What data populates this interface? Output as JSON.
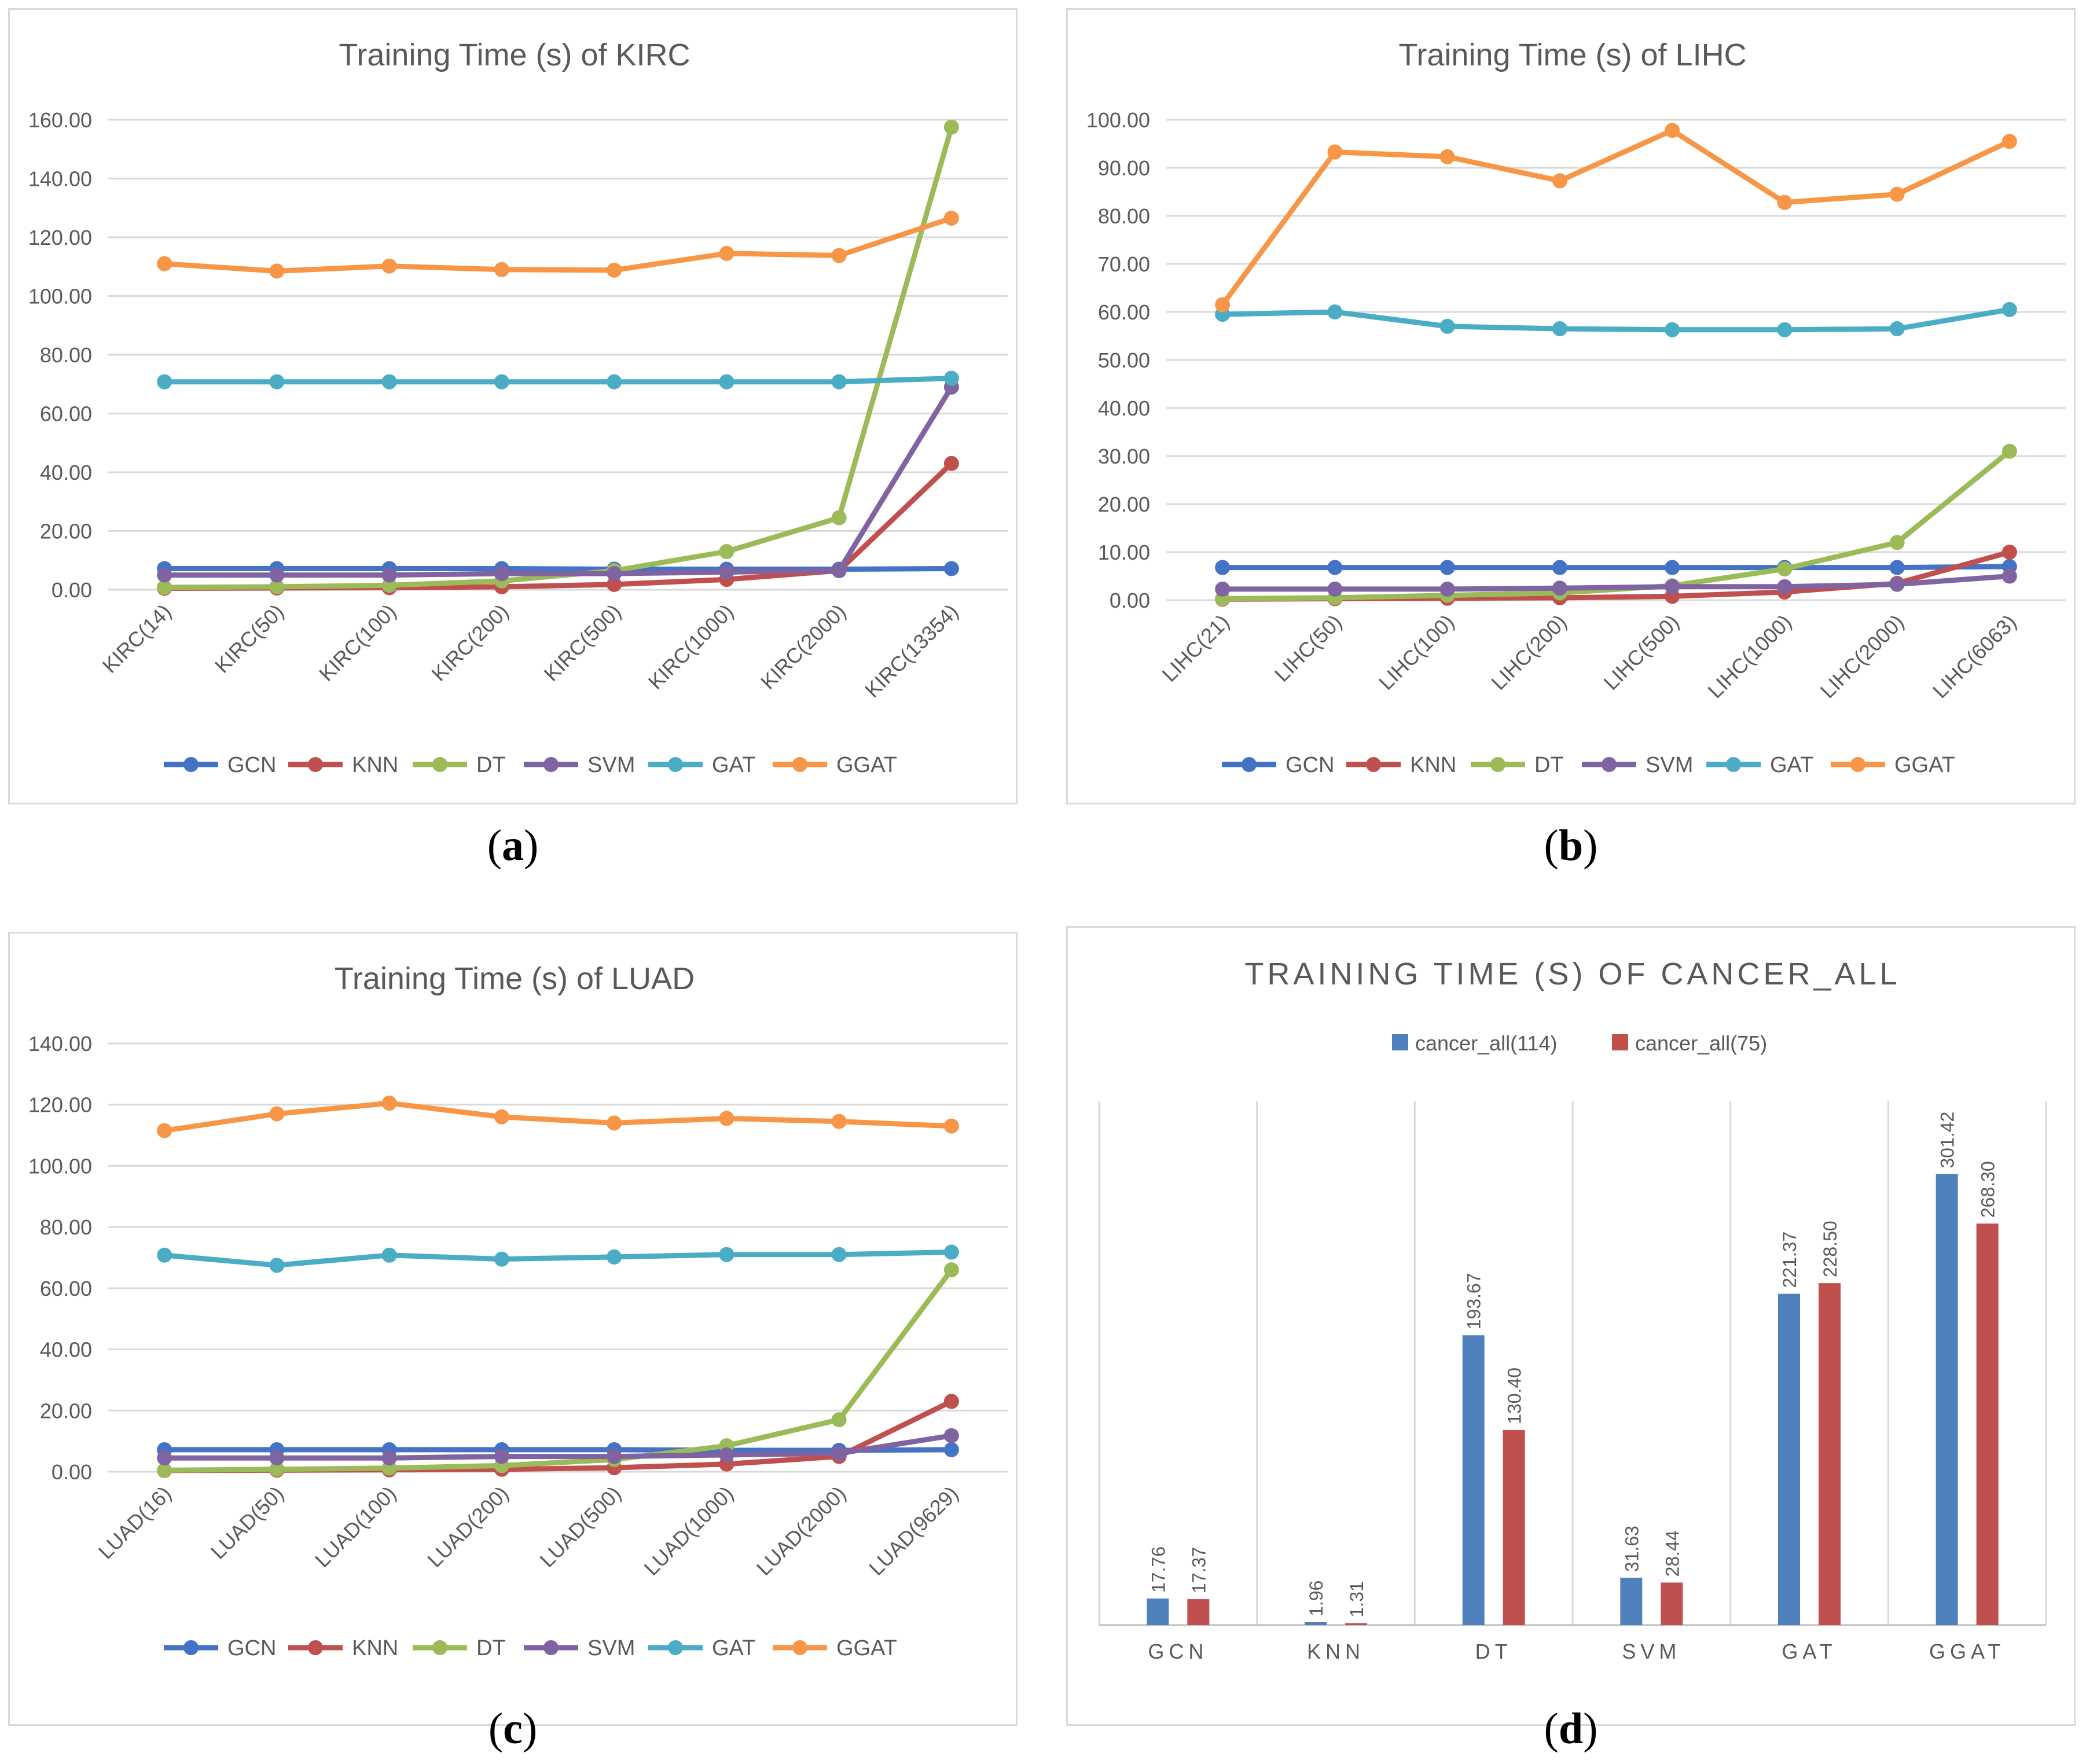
{
  "chart_data": [
    {
      "type": "line",
      "panel": "a",
      "title": "Training Time (s) of KIRC",
      "categories": [
        "KIRC(14)",
        "KIRC(50)",
        "KIRC(100)",
        "KIRC(200)",
        "KIRC(500)",
        "KIRC(1000)",
        "KIRC(2000)",
        "KIRC(13354)"
      ],
      "ylim": [
        0,
        160
      ],
      "yticks": [
        "0.00",
        "20.00",
        "40.00",
        "60.00",
        "80.00",
        "100.00",
        "120.00",
        "140.00",
        "160.00"
      ],
      "grid": true,
      "legend": "bottom",
      "series": [
        {
          "name": "GCN",
          "color": "#4472c4",
          "values": [
            7.2,
            7.2,
            7.2,
            7.2,
            7.0,
            7.0,
            7.0,
            7.2
          ]
        },
        {
          "name": "KNN",
          "color": "#c0504d",
          "values": [
            0.5,
            0.6,
            0.7,
            1.0,
            1.8,
            3.5,
            6.5,
            43.0
          ]
        },
        {
          "name": "DT",
          "color": "#9bbb59",
          "values": [
            0.8,
            1.0,
            1.5,
            3.0,
            6.5,
            13.0,
            24.5,
            157.5
          ]
        },
        {
          "name": "SVM",
          "color": "#8064a2",
          "values": [
            5.0,
            5.0,
            5.0,
            5.5,
            5.5,
            6.0,
            6.5,
            69.0
          ]
        },
        {
          "name": "GAT",
          "color": "#4bacc6",
          "values": [
            70.8,
            70.8,
            70.8,
            70.8,
            70.8,
            70.8,
            70.8,
            72.0
          ]
        },
        {
          "name": "GGAT",
          "color": "#f79646",
          "values": [
            111.0,
            108.5,
            110.2,
            109.0,
            108.8,
            114.5,
            113.8,
            126.5
          ]
        }
      ]
    },
    {
      "type": "line",
      "panel": "b",
      "title": "Training Time (s) of LIHC",
      "categories": [
        "LIHC(21)",
        "LIHC(50)",
        "LIHC(100)",
        "LIHC(200)",
        "LIHC(500)",
        "LIHC(1000)",
        "LIHC(2000)",
        "LIHC(6063)"
      ],
      "ylim": [
        0,
        100
      ],
      "yticks": [
        "0.00",
        "10.00",
        "20.00",
        "30.00",
        "40.00",
        "50.00",
        "60.00",
        "70.00",
        "80.00",
        "90.00",
        "100.00"
      ],
      "grid": true,
      "legend": "bottom",
      "series": [
        {
          "name": "GCN",
          "color": "#4472c4",
          "values": [
            6.8,
            6.8,
            6.8,
            6.8,
            6.8,
            6.8,
            6.8,
            7.0
          ]
        },
        {
          "name": "KNN",
          "color": "#c0504d",
          "values": [
            0.2,
            0.3,
            0.4,
            0.5,
            0.8,
            1.7,
            3.5,
            10.0
          ]
        },
        {
          "name": "DT",
          "color": "#9bbb59",
          "values": [
            0.3,
            0.5,
            1.0,
            1.5,
            3.0,
            6.5,
            12.0,
            31.0
          ]
        },
        {
          "name": "SVM",
          "color": "#8064a2",
          "values": [
            2.3,
            2.3,
            2.3,
            2.5,
            2.8,
            2.8,
            3.3,
            5.0
          ]
        },
        {
          "name": "GAT",
          "color": "#4bacc6",
          "values": [
            59.5,
            60.0,
            57.0,
            56.5,
            56.3,
            56.3,
            56.5,
            60.5
          ]
        },
        {
          "name": "GGAT",
          "color": "#f79646",
          "values": [
            61.5,
            93.3,
            92.3,
            87.3,
            97.8,
            82.8,
            84.5,
            95.5
          ]
        }
      ]
    },
    {
      "type": "line",
      "panel": "c",
      "title": "Training Time (s) of LUAD",
      "categories": [
        "LUAD(16)",
        "LUAD(50)",
        "LUAD(100)",
        "LUAD(200)",
        "LUAD(500)",
        "LUAD(1000)",
        "LUAD(2000)",
        "LUAD(9629)"
      ],
      "ylim": [
        0,
        140
      ],
      "yticks": [
        "0.00",
        "20.00",
        "40.00",
        "60.00",
        "80.00",
        "100.00",
        "120.00",
        "140.00"
      ],
      "grid": true,
      "legend": "bottom",
      "series": [
        {
          "name": "GCN",
          "color": "#4472c4",
          "values": [
            7.2,
            7.2,
            7.2,
            7.2,
            7.2,
            7.0,
            7.0,
            7.2
          ]
        },
        {
          "name": "KNN",
          "color": "#c0504d",
          "values": [
            0.4,
            0.5,
            0.6,
            0.8,
            1.3,
            2.5,
            5.0,
            23.0
          ]
        },
        {
          "name": "DT",
          "color": "#9bbb59",
          "values": [
            0.5,
            0.8,
            1.2,
            2.0,
            4.0,
            8.5,
            17.0,
            66.0
          ]
        },
        {
          "name": "SVM",
          "color": "#8064a2",
          "values": [
            4.5,
            4.5,
            4.5,
            5.0,
            5.0,
            5.5,
            6.0,
            11.8
          ]
        },
        {
          "name": "GAT",
          "color": "#4bacc6",
          "values": [
            70.8,
            67.5,
            70.8,
            69.5,
            70.2,
            71.0,
            71.0,
            71.8
          ]
        },
        {
          "name": "GGAT",
          "color": "#f79646",
          "values": [
            111.5,
            117.0,
            120.5,
            116.0,
            114.0,
            115.5,
            114.5,
            113.0
          ]
        }
      ]
    },
    {
      "type": "bar",
      "panel": "d",
      "title": "TRAINING TIME (S) OF CANCER_ALL",
      "categories": [
        "GCN",
        "KNN",
        "DT",
        "SVM",
        "GAT",
        "GGAT"
      ],
      "ylim": [
        0,
        350
      ],
      "grid": false,
      "legend": "top",
      "series": [
        {
          "name": "cancer_all(114)",
          "color": "#4f81bd",
          "values": [
            17.76,
            1.96,
            193.67,
            31.63,
            221.37,
            301.42
          ],
          "labels": [
            "17.76",
            "1.96",
            "193.67",
            "31.63",
            "221.37",
            "301.42"
          ]
        },
        {
          "name": "cancer_all(75)",
          "color": "#c0504d",
          "values": [
            17.37,
            1.31,
            130.4,
            28.44,
            228.5,
            268.3
          ],
          "labels": [
            "17.37",
            "1.31",
            "130.40",
            "28.44",
            "228.50",
            "268.30"
          ]
        }
      ]
    }
  ],
  "captions": [
    "(a)",
    "(b)",
    "(c)",
    "(d)"
  ]
}
